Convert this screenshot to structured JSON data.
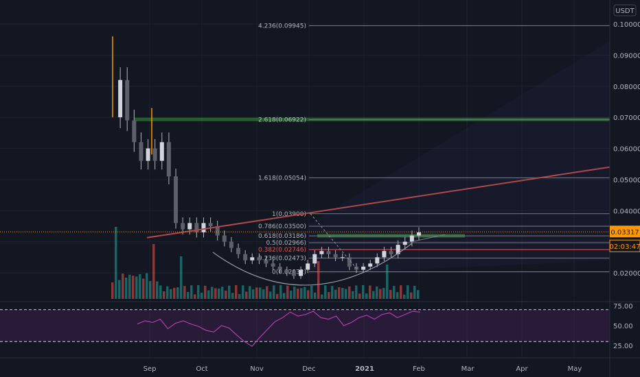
{
  "chart_data": {
    "type": "candlestick",
    "currency": "USDT",
    "price_axis": {
      "ticks": [
        "0.10000",
        "0.09000",
        "0.08000",
        "0.07000",
        "0.06000",
        "0.05000",
        "0.04000",
        "0.02000"
      ],
      "current_price": "0.03317",
      "countdown": "02:03:47"
    },
    "time_axis": [
      "Sep",
      "Oct",
      "Nov",
      "Dec",
      "2021",
      "Feb",
      "Mar",
      "Apr",
      "May"
    ],
    "rsi": {
      "ticks": [
        "75.00",
        "50.00",
        "25.00"
      ],
      "upper": 70,
      "lower": 30
    },
    "fib_levels": [
      {
        "label": "4.236(0.09945)",
        "value": 0.09945
      },
      {
        "label": "2.618(0.06922)",
        "value": 0.06922
      },
      {
        "label": "1.618(0.05054)",
        "value": 0.05054
      },
      {
        "label": "1(0.03900)",
        "value": 0.039
      },
      {
        "label": "0.786(0.03500)",
        "value": 0.035
      },
      {
        "label": "0.618(0.03186)",
        "value": 0.03186
      },
      {
        "label": "0.5(0.02966)",
        "value": 0.02966
      },
      {
        "label": "0.382(0.02746)",
        "value": 0.02746
      },
      {
        "label": "0.236(0.02473)",
        "value": 0.02473
      },
      {
        "label": "0(0.02032)",
        "value": 0.02032
      }
    ],
    "price_series": [
      0.07,
      0.082,
      0.069,
      0.062,
      0.056,
      0.06,
      0.056,
      0.062,
      0.051,
      0.036,
      0.034,
      0.036,
      0.033,
      0.036,
      0.035,
      0.032,
      0.03,
      0.028,
      0.026,
      0.024,
      0.025,
      0.024,
      0.023,
      0.022,
      0.021,
      0.02,
      0.019,
      0.021,
      0.023,
      0.026,
      0.027,
      0.026,
      0.025,
      0.025,
      0.022,
      0.021,
      0.022,
      0.023,
      0.025,
      0.027,
      0.026,
      0.029,
      0.03,
      0.032,
      0.033
    ],
    "rsi_series": [
      52,
      56,
      54,
      58,
      46,
      53,
      56,
      52,
      49,
      44,
      42,
      50,
      47,
      38,
      30,
      24,
      35,
      45,
      55,
      60,
      67,
      62,
      64,
      68,
      60,
      58,
      62,
      50,
      54,
      60,
      63,
      58,
      64,
      66,
      60,
      64,
      68,
      67
    ]
  },
  "colors": {
    "up": "#26a69a",
    "down": "#ef5350",
    "wick": "#b2b5be",
    "trend": "#b2484c",
    "fib_green": "#2e7d32",
    "rsi": "#b040a8",
    "highlight": "#ff9800"
  }
}
